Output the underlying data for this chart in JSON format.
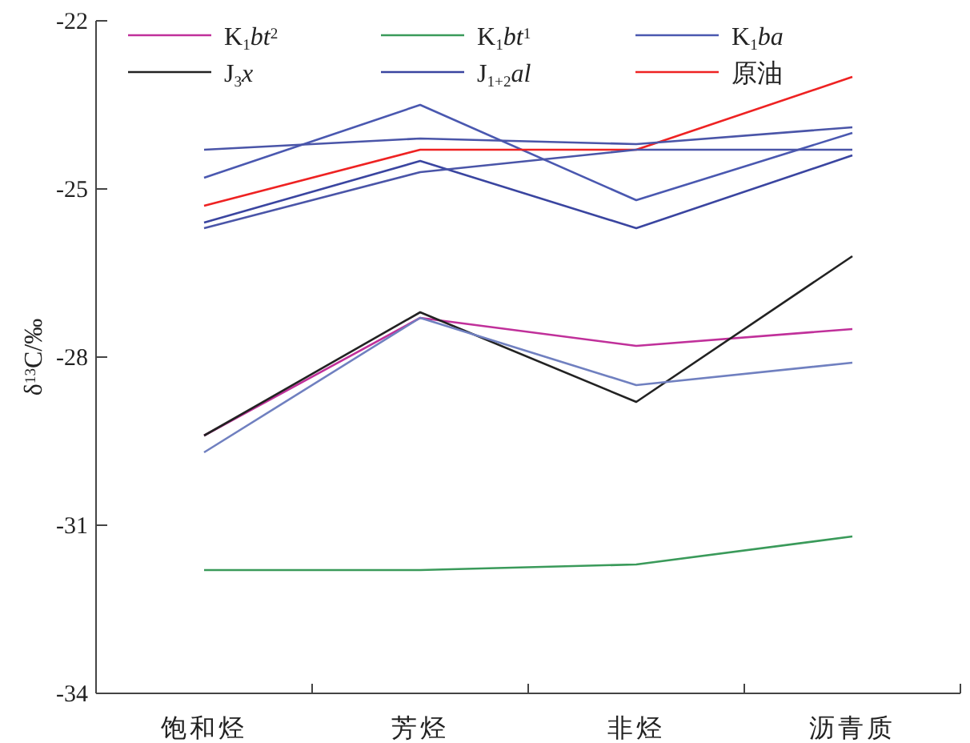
{
  "chart_data": {
    "type": "line",
    "ylabel": "δ$^{13}$C/‰",
    "categories": [
      "饱和烃",
      "芳烃",
      "非烃",
      "沥青质"
    ],
    "ylim": [
      -34,
      -22
    ],
    "yticks": [
      -22,
      -25,
      -28,
      -31,
      -34
    ],
    "grid": false,
    "legend": "top",
    "marker": "none",
    "line_style": "solid",
    "series": [
      {
        "name": "K$_{1}$*bt*$^{2}$",
        "color": "#c0309a",
        "values": [
          -29.4,
          -27.3,
          -27.8,
          -27.5
        ]
      },
      {
        "name": "K$_{1}$*bt*$^{1}$",
        "color": "#3a9a5a",
        "values": [
          -31.8,
          -31.8,
          -31.7,
          -31.2
        ]
      },
      {
        "name": "K$_{1}$*ba*",
        "color": "#4a58b0",
        "values": [
          -24.8,
          -23.5,
          -25.2,
          -24.0
        ]
      },
      {
        "name": "J$_{3}$*x*",
        "color": "#222222",
        "values": [
          -29.4,
          -27.2,
          -28.8,
          -26.2
        ]
      },
      {
        "name": "J$_{1+2}$*al*",
        "color": "#3a45a0",
        "values": [
          -25.6,
          -24.5,
          -25.7,
          -24.4
        ]
      },
      {
        "name": "原油",
        "color": "#ee2222",
        "values": [
          -25.3,
          -24.3,
          -24.3,
          -23.0
        ]
      },
      {
        "color": "#4a55a8",
        "values": [
          -24.3,
          -24.1,
          -24.2,
          -23.9
        ]
      },
      {
        "color": "#4a55a8",
        "values": [
          -25.7,
          -24.7,
          -24.3,
          -24.3
        ]
      },
      {
        "color": "#7080c0",
        "values": [
          -29.7,
          -27.3,
          -28.5,
          -28.1
        ]
      }
    ]
  }
}
